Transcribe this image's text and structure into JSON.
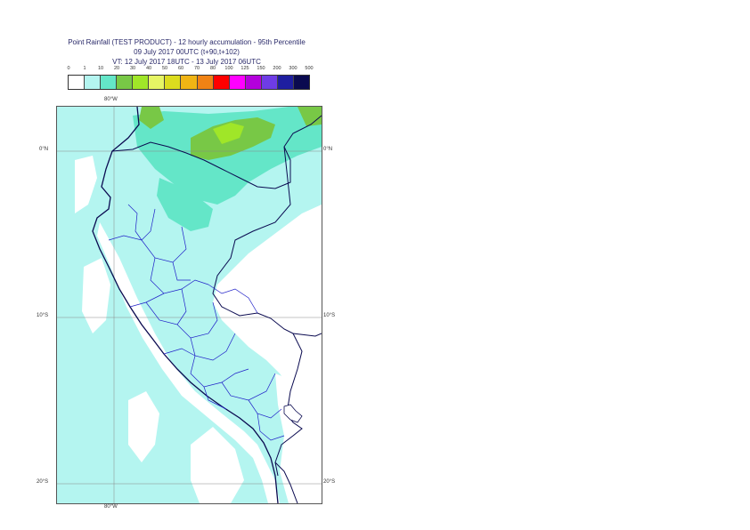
{
  "title": {
    "line1": "Point Rainfall (TEST PRODUCT) - 12 hourly accumulation - 95th Percentile",
    "line2": "09 July 2017 00UTC (t+90,t+102)",
    "line3": "VT: 12 July 2017 18UTC - 13 July 2017 06UTC"
  },
  "legend": {
    "labels": [
      "0",
      "1",
      "10",
      "20",
      "30",
      "40",
      "50",
      "60",
      "70",
      "80",
      "100",
      "125",
      "150",
      "200",
      "300",
      "500"
    ],
    "colors": [
      "#ffffff",
      "#b4f5f0",
      "#64e6c8",
      "#78c846",
      "#a0e628",
      "#e6f564",
      "#dcdc1e",
      "#f0b414",
      "#f08214",
      "#ff0000",
      "#ff00ff",
      "#b400dc",
      "#6e3ce6",
      "#1e1ea0",
      "#0a0a50"
    ]
  },
  "axes": {
    "top_lon": "80°W",
    "bottom_lon": "80°W",
    "lat_labels": [
      "0°N",
      "10°S",
      "20°S"
    ]
  }
}
